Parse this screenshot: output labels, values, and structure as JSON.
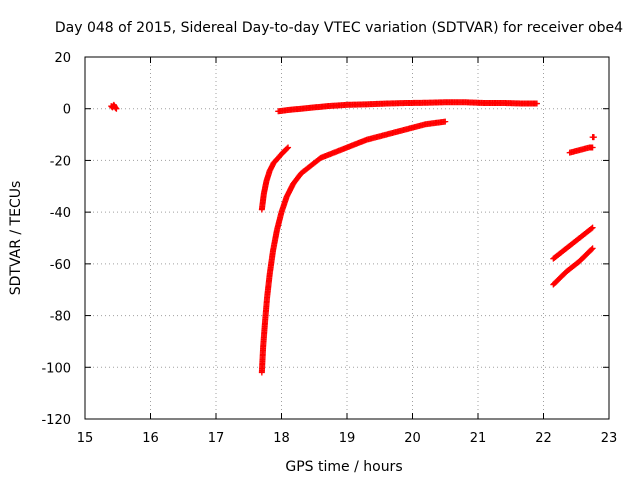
{
  "chart_data": {
    "type": "scatter",
    "title": "Day 048 of 2015, Sidereal Day-to-day VTEC variation (SDTVAR) for receiver obe4",
    "xlabel": "GPS time / hours",
    "ylabel": "SDTVAR / TECUs",
    "xlim": [
      15,
      23
    ],
    "ylim": [
      -120,
      20
    ],
    "xticks": [
      "15",
      "16",
      "17",
      "18",
      "19",
      "20",
      "21",
      "22",
      "23"
    ],
    "yticks": [
      "20",
      "0",
      "-20",
      "-40",
      "-60",
      "-80",
      "-100",
      "-120"
    ],
    "grid": true,
    "marker": "+",
    "color": "#ff0000",
    "series": [
      {
        "name": "isolated-15.4",
        "x": [
          15.4,
          15.42,
          15.44,
          15.46,
          15.48
        ],
        "y": [
          1.0,
          0.5,
          1.5,
          0.5,
          0.0
        ]
      },
      {
        "name": "near-zero-arc",
        "x": [
          17.95,
          18.1,
          18.3,
          18.5,
          18.7,
          19.0,
          19.3,
          19.6,
          19.9,
          20.2,
          20.5,
          20.8,
          21.1,
          21.4,
          21.7,
          21.9
        ],
        "y": [
          -1.0,
          -0.5,
          0.0,
          0.5,
          1.0,
          1.5,
          1.7,
          2.0,
          2.2,
          2.3,
          2.5,
          2.5,
          2.2,
          2.2,
          2.0,
          2.0
        ]
      },
      {
        "name": "arc-a",
        "x": [
          17.7,
          17.73,
          17.77,
          17.82,
          17.88,
          17.95,
          18.02,
          18.1
        ],
        "y": [
          -39,
          -33,
          -28,
          -24,
          -21,
          -19,
          -17,
          -15
        ]
      },
      {
        "name": "arc-b",
        "x": [
          17.7,
          17.72,
          17.75,
          17.78,
          17.82,
          17.87,
          17.93,
          18.0,
          18.08,
          18.18,
          18.3,
          18.45,
          18.6,
          18.8,
          19.0,
          19.3,
          19.6,
          19.9,
          20.2,
          20.5
        ],
        "y": [
          -102,
          -92,
          -82,
          -73,
          -64,
          -55,
          -47,
          -40,
          -34,
          -29,
          -25,
          -22,
          -19,
          -17,
          -15,
          -12,
          -10,
          -8,
          -6,
          -5
        ]
      },
      {
        "name": "segment-22a",
        "x": [
          22.15,
          22.35,
          22.55,
          22.75
        ],
        "y": [
          -58,
          -54,
          -50,
          -46
        ]
      },
      {
        "name": "segment-22b",
        "x": [
          22.15,
          22.35,
          22.55,
          22.75
        ],
        "y": [
          -68,
          -63,
          -59,
          -54
        ]
      },
      {
        "name": "segment-22c",
        "x": [
          22.4,
          22.55,
          22.7,
          22.75
        ],
        "y": [
          -17,
          -16,
          -15,
          -15
        ]
      },
      {
        "name": "isolated-22.75",
        "x": [
          22.75,
          22.77
        ],
        "y": [
          -11,
          -11
        ]
      }
    ]
  }
}
